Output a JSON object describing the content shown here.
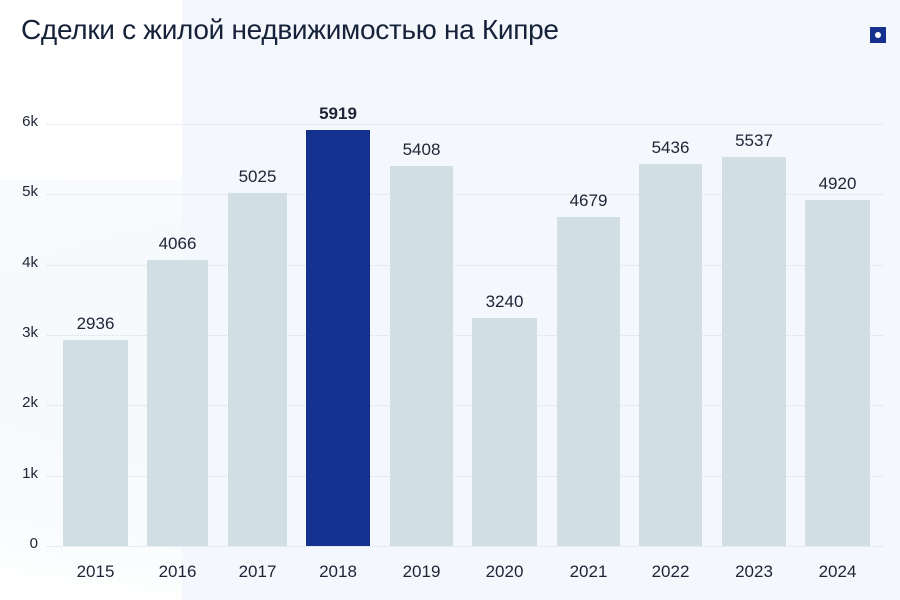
{
  "header": {
    "title": "Сделки с жилой недвижимостью на Кипре",
    "badge_icon": "square-dot-icon"
  },
  "colors": {
    "bar_default": "#d1dfe5",
    "bar_highlight": "#15318f",
    "text": "#1d2435",
    "background": "#f4f8fc"
  },
  "chart_data": {
    "type": "bar",
    "title": "Сделки с жилой недвижимостью на Кипре",
    "xlabel": "",
    "ylabel": "",
    "categories": [
      "2015",
      "2016",
      "2017",
      "2018",
      "2019",
      "2020",
      "2021",
      "2022",
      "2023",
      "2024"
    ],
    "values": [
      2936,
      4066,
      5025,
      5919,
      5408,
      3240,
      4679,
      5436,
      5537,
      4920
    ],
    "value_labels": [
      "2936",
      "4066",
      "5025",
      "5919",
      "5408",
      "3240",
      "4679",
      "5436",
      "5537",
      "4920"
    ],
    "highlighted_category": "2018",
    "ylim": [
      0,
      6000
    ],
    "yticks": [
      "0",
      "1k",
      "2k",
      "3k",
      "4k",
      "5k",
      "6k"
    ],
    "grid": true,
    "legend": null
  }
}
